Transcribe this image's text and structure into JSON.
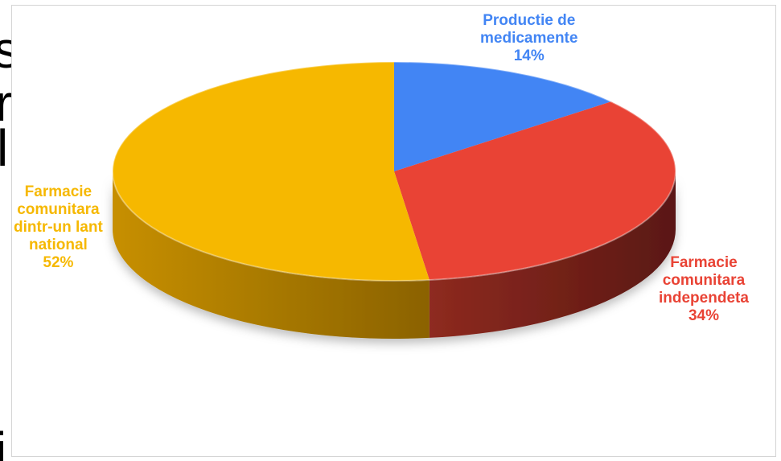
{
  "chart_data": {
    "type": "pie",
    "style": "3d",
    "title": "",
    "slices": [
      {
        "label_lines": [
          "Productie de",
          "medicamente"
        ],
        "pct_text": "14%",
        "value": 14,
        "color": "#4285f4"
      },
      {
        "label_lines": [
          "Farmacie",
          "comunitara",
          "independeta"
        ],
        "pct_text": "34%",
        "value": 34,
        "color": "#e94335"
      },
      {
        "label_lines": [
          "Farmacie",
          "comunitara",
          "dintr-un lant",
          "national"
        ],
        "pct_text": "52%",
        "value": 52,
        "color": "#f6b800"
      }
    ],
    "legend": "none",
    "data_labels": "outside, category name and percentage"
  },
  "background_text": [
    "s",
    "r",
    "l",
    "i"
  ]
}
